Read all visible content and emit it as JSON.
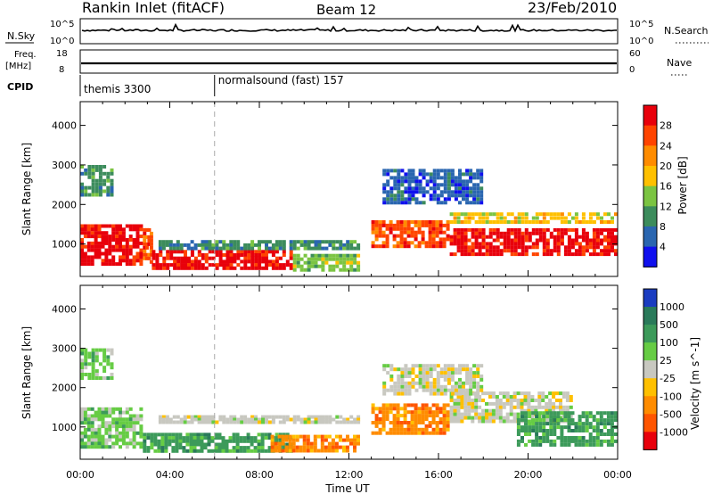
{
  "header": {
    "station": "Rankin Inlet (fitACF)",
    "beam": "Beam 12",
    "date": "23/Feb/2010"
  },
  "panels": {
    "nsky": {
      "left_label": "N.Sky",
      "right_label": "N.Search",
      "left_ticks": [
        "10^5",
        "10^0"
      ],
      "right_ticks": [
        "10^5",
        "10^0"
      ]
    },
    "freq": {
      "left_label_line1": "Freq.",
      "left_label_line2": "[MHz]",
      "right_label": "Nave",
      "left_ticks": [
        "18",
        "8"
      ],
      "right_ticks": [
        "60",
        "0"
      ]
    },
    "cpid": {
      "label": "CPID",
      "entries": [
        {
          "text": "themis 3300",
          "start_hour": 0
        },
        {
          "text": "normalsound (fast) 157",
          "start_hour": 6
        }
      ]
    }
  },
  "chart_data": [
    {
      "type": "heatmap",
      "title": "Power",
      "ylabel": "Slant Range [km]",
      "colorbar_label": "Power [dB]",
      "colorbar_ticks": [
        "28",
        "24",
        "20",
        "16",
        "12",
        "8",
        "4"
      ],
      "colors": [
        "#e8000b",
        "#ff4400",
        "#ff8c00",
        "#ffc000",
        "#7bc442",
        "#3c8c5c",
        "#2a66b0",
        "#1010ee"
      ],
      "x_ticks": [
        "00:00",
        "04:00",
        "08:00",
        "12:00",
        "16:00",
        "20:00",
        "00:00"
      ],
      "xlim_hours": [
        0,
        24
      ],
      "ylim_km": [
        180,
        4600
      ],
      "y_ticks": [
        "1000",
        "2000",
        "3000",
        "4000"
      ],
      "regions": [
        {
          "t0": 0.0,
          "t1": 2.8,
          "r0": 450,
          "r1": 1500,
          "level": 0
        },
        {
          "t0": 2.8,
          "t1": 3.2,
          "r0": 500,
          "r1": 1400,
          "level": 1
        },
        {
          "t0": 3.2,
          "t1": 9.5,
          "r0": 350,
          "r1": 850,
          "level": 0
        },
        {
          "t0": 9.5,
          "t1": 12.5,
          "r0": 300,
          "r1": 750,
          "level": 4
        },
        {
          "t0": 13.0,
          "t1": 16.5,
          "r0": 900,
          "r1": 1600,
          "level": 1
        },
        {
          "t0": 16.5,
          "t1": 24.0,
          "r0": 700,
          "r1": 1400,
          "level": 0
        },
        {
          "t0": 16.5,
          "t1": 24.0,
          "r0": 1500,
          "r1": 1800,
          "level": 3
        },
        {
          "t0": 3.5,
          "t1": 12.5,
          "r0": 850,
          "r1": 1100,
          "level": 5
        },
        {
          "t0": 13.5,
          "t1": 18.0,
          "r0": 2000,
          "r1": 2900,
          "level": 6
        },
        {
          "t0": 0.0,
          "t1": 1.5,
          "r0": 2200,
          "r1": 3000,
          "level": 5
        }
      ]
    },
    {
      "type": "heatmap",
      "title": "Velocity",
      "ylabel": "Slant Range [km]",
      "xlabel": "Time UT",
      "colorbar_label": "Velocity [m s^-1]",
      "colorbar_ticks": [
        "1000",
        "500",
        "100",
        "25",
        "-25",
        "-100",
        "-500",
        "-1000"
      ],
      "colors": [
        "#1a3cc0",
        "#2a7a5a",
        "#3c9a5a",
        "#66cc44",
        "#c8c8c0",
        "#ffc000",
        "#ff8c00",
        "#ff5500",
        "#e8000b"
      ],
      "x_ticks": [
        "00:00",
        "04:00",
        "08:00",
        "12:00",
        "16:00",
        "20:00",
        "00:00"
      ],
      "xlim_hours": [
        0,
        24
      ],
      "ylim_km": [
        180,
        4600
      ],
      "y_ticks": [
        "1000",
        "2000",
        "3000",
        "4000"
      ],
      "regions": [
        {
          "t0": 0.0,
          "t1": 2.8,
          "r0": 450,
          "r1": 1500,
          "level": 3
        },
        {
          "t0": 2.8,
          "t1": 9.5,
          "r0": 350,
          "r1": 850,
          "level": 2
        },
        {
          "t0": 3.5,
          "t1": 12.5,
          "r0": 1100,
          "r1": 1300,
          "level": 4
        },
        {
          "t0": 8.5,
          "t1": 12.5,
          "r0": 350,
          "r1": 800,
          "level": 6
        },
        {
          "t0": 13.0,
          "t1": 16.5,
          "r0": 800,
          "r1": 1600,
          "level": 6
        },
        {
          "t0": 16.5,
          "t1": 22.0,
          "r0": 1100,
          "r1": 1900,
          "level": 4
        },
        {
          "t0": 13.5,
          "t1": 18.0,
          "r0": 1800,
          "r1": 2600,
          "level": 4
        },
        {
          "t0": 19.5,
          "t1": 24.0,
          "r0": 500,
          "r1": 1400,
          "level": 2
        },
        {
          "t0": 0.0,
          "t1": 1.5,
          "r0": 2200,
          "r1": 3000,
          "level": 3
        }
      ]
    }
  ]
}
